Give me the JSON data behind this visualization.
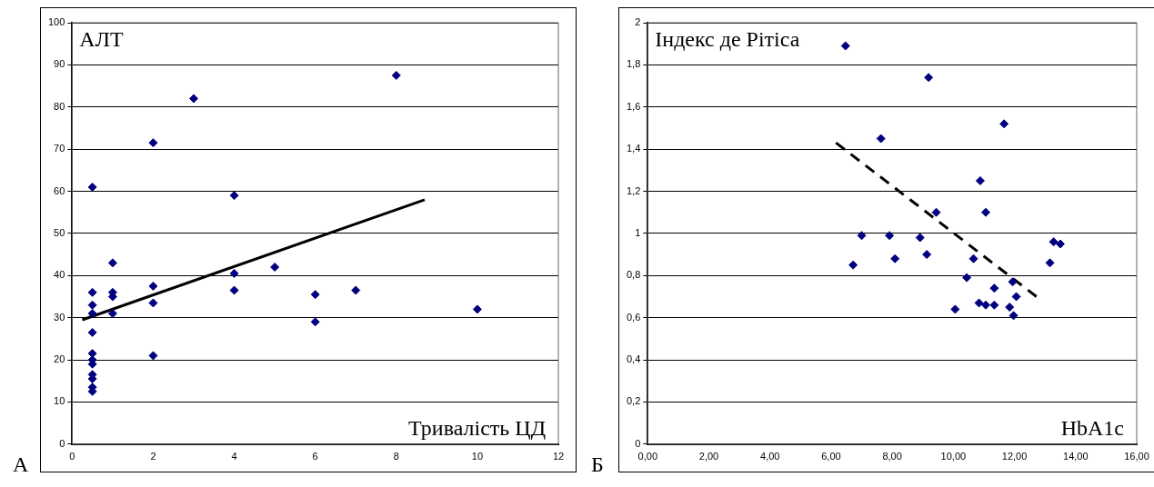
{
  "chart_data": [
    {
      "type": "scatter",
      "xlabel": "Тривалість ЦД",
      "ylabel": "АЛТ",
      "annotations": [
        "А"
      ],
      "xlim": [
        0,
        12
      ],
      "xticks": [
        0,
        2,
        4,
        6,
        8,
        10,
        12
      ],
      "ylim": [
        0,
        100
      ],
      "yticks": [
        0,
        10,
        20,
        30,
        40,
        50,
        60,
        70,
        80,
        90,
        100
      ],
      "grid": "y",
      "legend": false,
      "marker": "diamond",
      "series": [
        {
          "type": "scatter",
          "color": "#000080",
          "x": [
            0.5,
            0.5,
            0.5,
            0.5,
            0.5,
            0.5,
            0.5,
            0.5,
            0.5,
            0.5,
            0.5,
            0.5,
            1,
            1,
            1,
            1,
            2,
            2,
            2,
            2,
            3,
            4,
            4,
            4,
            5,
            6,
            6,
            7,
            8,
            10
          ],
          "values": [
            61,
            36,
            33,
            31,
            26.5,
            21.5,
            20,
            19,
            16.5,
            15.5,
            13.5,
            12.5,
            43,
            36,
            35,
            31,
            71.5,
            37.5,
            33.5,
            21,
            82,
            59,
            40.5,
            36.5,
            42,
            35.5,
            29,
            36.5,
            87.5,
            32
          ]
        },
        {
          "type": "line",
          "color": "#000000",
          "marker": "none",
          "line_style": "solid",
          "x": [
            0.25,
            8.7
          ],
          "values": [
            29.5,
            58
          ]
        }
      ]
    },
    {
      "type": "scatter",
      "xlabel": "HbA1c",
      "ylabel": "Індекс де Рітіса",
      "annotations": [
        "Б"
      ],
      "xlim": [
        0,
        16
      ],
      "xticks": [
        {
          "value": 0,
          "label": "0,00"
        },
        {
          "value": 2,
          "label": "2,00"
        },
        {
          "value": 4,
          "label": "4,00"
        },
        {
          "value": 6,
          "label": "6,00"
        },
        {
          "value": 8,
          "label": "8,00"
        },
        {
          "value": 10,
          "label": "10,00"
        },
        {
          "value": 12,
          "label": "12,00"
        },
        {
          "value": 14,
          "label": "14,00"
        },
        {
          "value": 16,
          "label": "16,00"
        }
      ],
      "ylim": [
        0,
        2
      ],
      "yticks": [
        0,
        {
          "value": 0.2,
          "label": "0,2"
        },
        {
          "value": 0.4,
          "label": "0,4"
        },
        {
          "value": 0.6,
          "label": "0,6"
        },
        {
          "value": 0.8,
          "label": "0,8"
        },
        1,
        {
          "value": 1.2,
          "label": "1,2"
        },
        {
          "value": 1.4,
          "label": "1,4"
        },
        {
          "value": 1.6,
          "label": "1,6"
        },
        {
          "value": 1.8,
          "label": "1,8"
        },
        2
      ],
      "grid": "y",
      "legend": false,
      "marker": "diamond",
      "series": [
        {
          "type": "scatter",
          "color": "#000080",
          "x": [
            6.47,
            9.19,
            11.66,
            7.63,
            10.88,
            9.44,
            11.06,
            7.91,
            8.91,
            13.28,
            13.5,
            8.09,
            9.13,
            10.66,
            13.16,
            10.44,
            11.94,
            11.34,
            12.06,
            10.84,
            11.06,
            11.34,
            11.84,
            10.06,
            11.97,
            6.72,
            7.0
          ],
          "values": [
            1.89,
            1.74,
            1.52,
            1.45,
            1.25,
            1.1,
            1.1,
            0.99,
            0.98,
            0.96,
            0.95,
            0.88,
            0.9,
            0.88,
            0.86,
            0.79,
            0.77,
            0.74,
            0.7,
            0.67,
            0.66,
            0.66,
            0.65,
            0.64,
            0.61,
            0.85,
            0.99
          ]
        },
        {
          "type": "line",
          "color": "#000000",
          "marker": "none",
          "line_style": "dashed",
          "x": [
            6.16,
            12.72
          ],
          "values": [
            1.43,
            0.7
          ]
        }
      ]
    }
  ]
}
